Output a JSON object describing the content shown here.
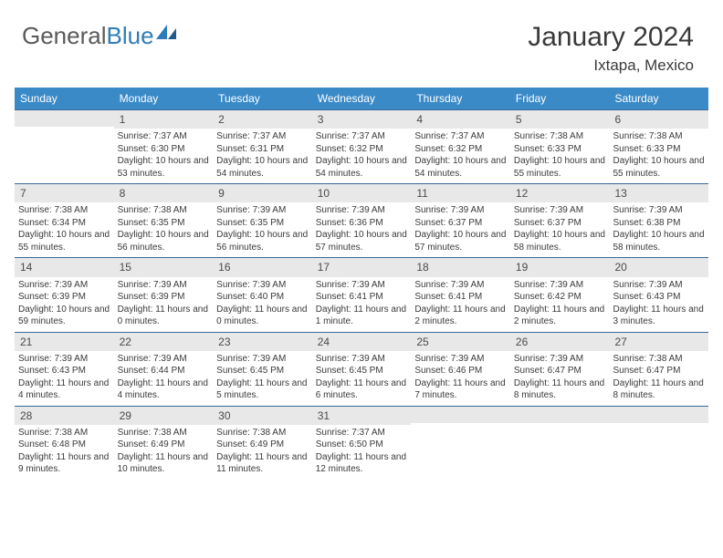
{
  "brand": {
    "part1": "General",
    "part2": "Blue"
  },
  "title": "January 2024",
  "location": "Ixtapa, Mexico",
  "colors": {
    "header_bg": "#3a8ac8",
    "header_text": "#ffffff",
    "rule": "#3a6a9a",
    "daynum_bg": "#e8e8e8",
    "body_text": "#3a3a3a",
    "brand_gray": "#5a5a5a",
    "brand_blue": "#2f7db8"
  },
  "day_labels": [
    "Sunday",
    "Monday",
    "Tuesday",
    "Wednesday",
    "Thursday",
    "Friday",
    "Saturday"
  ],
  "weeks": [
    [
      {
        "blank": true
      },
      {
        "n": "1",
        "sr": "7:37 AM",
        "ss": "6:30 PM",
        "dl": "10 hours and 53 minutes."
      },
      {
        "n": "2",
        "sr": "7:37 AM",
        "ss": "6:31 PM",
        "dl": "10 hours and 54 minutes."
      },
      {
        "n": "3",
        "sr": "7:37 AM",
        "ss": "6:32 PM",
        "dl": "10 hours and 54 minutes."
      },
      {
        "n": "4",
        "sr": "7:37 AM",
        "ss": "6:32 PM",
        "dl": "10 hours and 54 minutes."
      },
      {
        "n": "5",
        "sr": "7:38 AM",
        "ss": "6:33 PM",
        "dl": "10 hours and 55 minutes."
      },
      {
        "n": "6",
        "sr": "7:38 AM",
        "ss": "6:33 PM",
        "dl": "10 hours and 55 minutes."
      }
    ],
    [
      {
        "n": "7",
        "sr": "7:38 AM",
        "ss": "6:34 PM",
        "dl": "10 hours and 55 minutes."
      },
      {
        "n": "8",
        "sr": "7:38 AM",
        "ss": "6:35 PM",
        "dl": "10 hours and 56 minutes."
      },
      {
        "n": "9",
        "sr": "7:39 AM",
        "ss": "6:35 PM",
        "dl": "10 hours and 56 minutes."
      },
      {
        "n": "10",
        "sr": "7:39 AM",
        "ss": "6:36 PM",
        "dl": "10 hours and 57 minutes."
      },
      {
        "n": "11",
        "sr": "7:39 AM",
        "ss": "6:37 PM",
        "dl": "10 hours and 57 minutes."
      },
      {
        "n": "12",
        "sr": "7:39 AM",
        "ss": "6:37 PM",
        "dl": "10 hours and 58 minutes."
      },
      {
        "n": "13",
        "sr": "7:39 AM",
        "ss": "6:38 PM",
        "dl": "10 hours and 58 minutes."
      }
    ],
    [
      {
        "n": "14",
        "sr": "7:39 AM",
        "ss": "6:39 PM",
        "dl": "10 hours and 59 minutes."
      },
      {
        "n": "15",
        "sr": "7:39 AM",
        "ss": "6:39 PM",
        "dl": "11 hours and 0 minutes."
      },
      {
        "n": "16",
        "sr": "7:39 AM",
        "ss": "6:40 PM",
        "dl": "11 hours and 0 minutes."
      },
      {
        "n": "17",
        "sr": "7:39 AM",
        "ss": "6:41 PM",
        "dl": "11 hours and 1 minute."
      },
      {
        "n": "18",
        "sr": "7:39 AM",
        "ss": "6:41 PM",
        "dl": "11 hours and 2 minutes."
      },
      {
        "n": "19",
        "sr": "7:39 AM",
        "ss": "6:42 PM",
        "dl": "11 hours and 2 minutes."
      },
      {
        "n": "20",
        "sr": "7:39 AM",
        "ss": "6:43 PM",
        "dl": "11 hours and 3 minutes."
      }
    ],
    [
      {
        "n": "21",
        "sr": "7:39 AM",
        "ss": "6:43 PM",
        "dl": "11 hours and 4 minutes."
      },
      {
        "n": "22",
        "sr": "7:39 AM",
        "ss": "6:44 PM",
        "dl": "11 hours and 4 minutes."
      },
      {
        "n": "23",
        "sr": "7:39 AM",
        "ss": "6:45 PM",
        "dl": "11 hours and 5 minutes."
      },
      {
        "n": "24",
        "sr": "7:39 AM",
        "ss": "6:45 PM",
        "dl": "11 hours and 6 minutes."
      },
      {
        "n": "25",
        "sr": "7:39 AM",
        "ss": "6:46 PM",
        "dl": "11 hours and 7 minutes."
      },
      {
        "n": "26",
        "sr": "7:39 AM",
        "ss": "6:47 PM",
        "dl": "11 hours and 8 minutes."
      },
      {
        "n": "27",
        "sr": "7:38 AM",
        "ss": "6:47 PM",
        "dl": "11 hours and 8 minutes."
      }
    ],
    [
      {
        "n": "28",
        "sr": "7:38 AM",
        "ss": "6:48 PM",
        "dl": "11 hours and 9 minutes."
      },
      {
        "n": "29",
        "sr": "7:38 AM",
        "ss": "6:49 PM",
        "dl": "11 hours and 10 minutes."
      },
      {
        "n": "30",
        "sr": "7:38 AM",
        "ss": "6:49 PM",
        "dl": "11 hours and 11 minutes."
      },
      {
        "n": "31",
        "sr": "7:37 AM",
        "ss": "6:50 PM",
        "dl": "11 hours and 12 minutes."
      },
      {
        "blank": true
      },
      {
        "blank": true
      },
      {
        "blank": true
      }
    ]
  ],
  "labels": {
    "sunrise": "Sunrise: ",
    "sunset": "Sunset: ",
    "daylight": "Daylight: "
  }
}
